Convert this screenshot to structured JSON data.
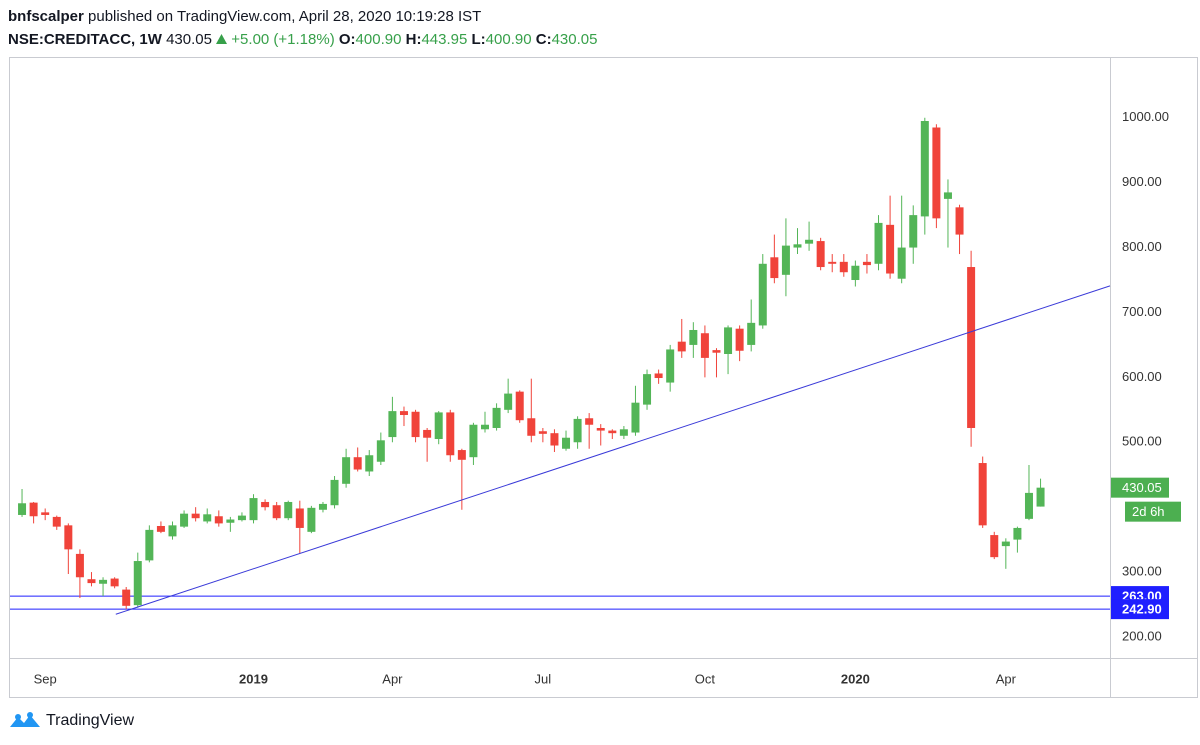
{
  "header": {
    "author": "bnfscalper",
    "published": "published on TradingView.com, April 28, 2020 10:19:28 IST",
    "symbol": "NSE:CREDITACC, 1W",
    "last": "430.05",
    "change": "+5.00 (+1.18%)",
    "ohlc": [
      {
        "key": "O:",
        "value": "400.90"
      },
      {
        "key": "H:",
        "value": "443.95"
      },
      {
        "key": "L:",
        "value": "400.90"
      },
      {
        "key": "C:",
        "value": "430.05"
      }
    ]
  },
  "chart_data": {
    "type": "candlestick",
    "categories": [
      null,
      null,
      "Sep",
      null,
      null,
      null,
      null,
      null,
      null,
      null,
      null,
      null,
      null,
      null,
      null,
      null,
      null,
      null,
      null,
      null,
      "2019",
      null,
      null,
      null,
      null,
      null,
      null,
      null,
      null,
      null,
      null,
      null,
      "Apr",
      null,
      null,
      null,
      null,
      null,
      null,
      null,
      null,
      null,
      null,
      null,
      null,
      "Jul",
      null,
      null,
      null,
      null,
      null,
      null,
      null,
      null,
      null,
      null,
      null,
      null,
      null,
      "Oct",
      null,
      null,
      null,
      null,
      null,
      null,
      null,
      null,
      null,
      null,
      null,
      null,
      "2020",
      null,
      null,
      null,
      null,
      null,
      null,
      null,
      null,
      null,
      null,
      null,
      null,
      "Apr",
      null,
      null,
      null
    ],
    "open": [
      388,
      407,
      392,
      385,
      372,
      328,
      289,
      282,
      290,
      273,
      249,
      318,
      371,
      355,
      370,
      390,
      378,
      386,
      376,
      380,
      380,
      408,
      403,
      383,
      398,
      362,
      396,
      403,
      436,
      477,
      455,
      470,
      508,
      548,
      547,
      519,
      505,
      546,
      488,
      477,
      520,
      522,
      550,
      578,
      537,
      517,
      514,
      490,
      500,
      537,
      522,
      518,
      510,
      515,
      558,
      606,
      592,
      655,
      650,
      668,
      642,
      636,
      675,
      650,
      680,
      785,
      758,
      800,
      806,
      810,
      778,
      778,
      750,
      778,
      775,
      835,
      752,
      800,
      848,
      985,
      875,
      862,
      770,
      468,
      357,
      340,
      350,
      382,
      400.9
    ],
    "high": [
      428,
      408,
      398,
      387,
      375,
      335,
      300,
      292,
      292,
      277,
      330,
      372,
      378,
      378,
      395,
      400,
      398,
      395,
      385,
      392,
      420,
      412,
      408,
      410,
      410,
      402,
      408,
      448,
      490,
      492,
      488,
      515,
      570,
      555,
      550,
      522,
      548,
      550,
      490,
      530,
      547,
      560,
      598,
      580,
      598,
      522,
      520,
      518,
      540,
      545,
      528,
      520,
      525,
      587,
      612,
      612,
      650,
      690,
      685,
      680,
      645,
      680,
      680,
      720,
      790,
      820,
      845,
      830,
      840,
      815,
      790,
      790,
      780,
      790,
      850,
      880,
      880,
      865,
      1000,
      990,
      905,
      866,
      795,
      478,
      362,
      352,
      370,
      465,
      443.95
    ],
    "low": [
      385,
      375,
      380,
      365,
      297,
      260,
      278,
      263,
      275,
      242.9,
      245,
      315,
      360,
      350,
      368,
      378,
      375,
      370,
      362,
      378,
      375,
      395,
      380,
      380,
      329,
      360,
      392,
      398,
      430,
      455,
      448,
      465,
      500,
      525,
      500,
      470,
      497,
      470,
      396,
      465,
      515,
      518,
      545,
      530,
      500,
      500,
      485,
      487,
      490,
      490,
      495,
      505,
      505,
      510,
      550,
      590,
      578,
      630,
      630,
      600,
      600,
      605,
      625,
      640,
      675,
      745,
      725,
      790,
      795,
      765,
      762,
      755,
      740,
      760,
      765,
      752,
      745,
      775,
      820,
      830,
      800,
      790,
      493,
      368,
      320,
      305,
      330,
      380,
      400.9
    ],
    "close": [
      406,
      386,
      388,
      370,
      335,
      292,
      283,
      288,
      278,
      248,
      317,
      365,
      362,
      372,
      390,
      383,
      389,
      375,
      381,
      387,
      414,
      400,
      383,
      408,
      368,
      399,
      405,
      442,
      477,
      458,
      480,
      503,
      548,
      542,
      508,
      507,
      546,
      480,
      473,
      527,
      527,
      553,
      575,
      534,
      510,
      513,
      495,
      507,
      536,
      527,
      518,
      514,
      520,
      561,
      605,
      599,
      643,
      640,
      673,
      630,
      638,
      677,
      641,
      684,
      775,
      753,
      803,
      805,
      812,
      770,
      775,
      762,
      772,
      773,
      838,
      760,
      800,
      850,
      995,
      845,
      885,
      820,
      522,
      372,
      323,
      347,
      368,
      422,
      430.05
    ],
    "up_color": "#53b557",
    "down_color": "#f0433a",
    "xlim": [
      -1.04,
      94
    ],
    "ylim": [
      167.6,
      1089
    ],
    "yticks": [
      {
        "value": 200,
        "label": "200.00"
      },
      {
        "value": 300,
        "label": "300.00"
      },
      {
        "value": 500,
        "label": "500.00"
      },
      {
        "value": 600,
        "label": "600.00"
      },
      {
        "value": 700,
        "label": "700.00"
      },
      {
        "value": 800,
        "label": "800.00"
      },
      {
        "value": 900,
        "label": "900.00"
      },
      {
        "value": 1000,
        "label": "1000.00"
      }
    ],
    "trendline": {
      "x": [
        8.1,
        94
      ],
      "values": [
        235,
        741
      ],
      "color": "#3a3ad8"
    },
    "price_labels": [
      {
        "value": 430.05,
        "label": "430.05",
        "color": "#4caf50",
        "line": false
      },
      {
        "value": 263,
        "label": "263.00",
        "color": "#1f1fff",
        "line": true
      },
      {
        "value": 242.9,
        "label": "242.90",
        "color": "#1f1fff",
        "line": true
      }
    ],
    "countdown": "2d 6h"
  },
  "footer": {
    "brand": "TradingView"
  }
}
